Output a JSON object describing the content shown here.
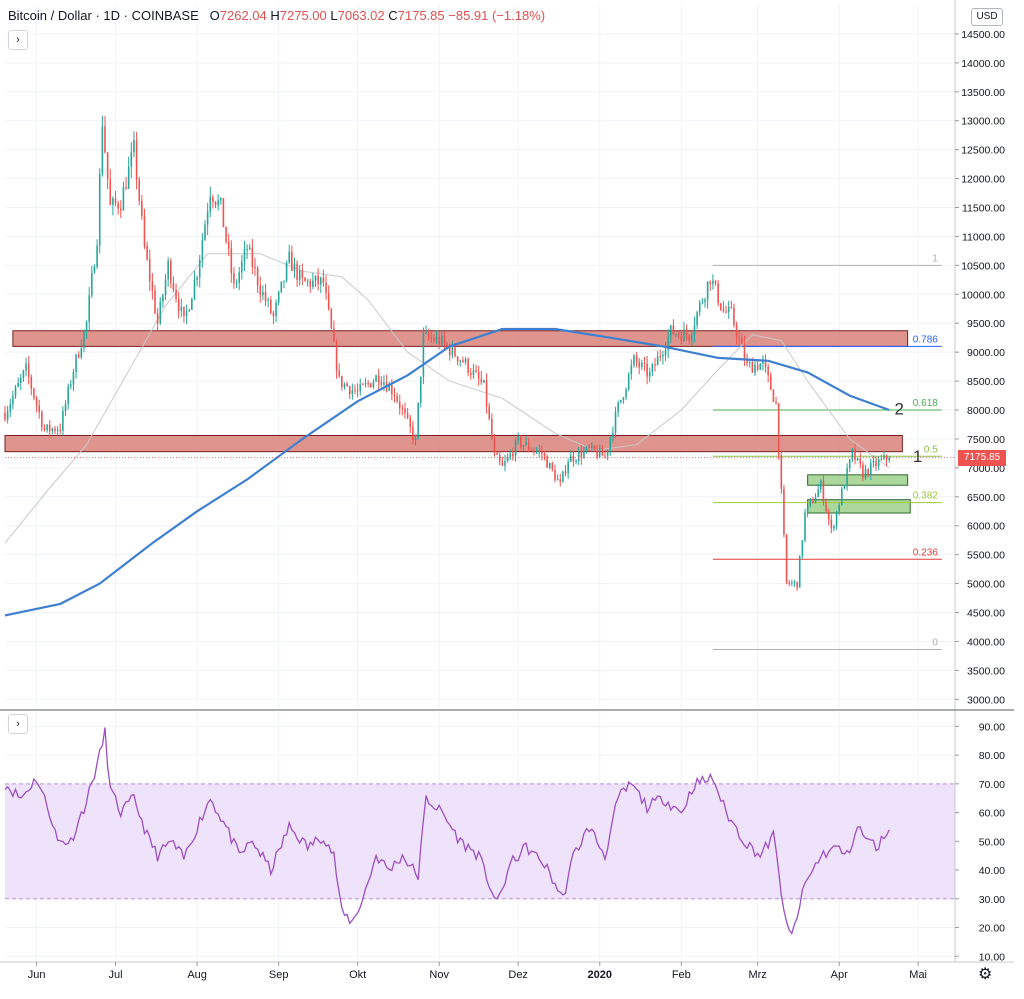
{
  "header": {
    "symbol": "Bitcoin / Dollar",
    "interval": "1D",
    "exchange": "COINBASE",
    "o_label": "O",
    "o_value": "7262.04",
    "h_label": "H",
    "h_value": "7275.00",
    "l_label": "L",
    "l_value": "7063.02",
    "c_label": "C",
    "c_value": "7175.85",
    "change": "−85.91 (−1.18%)",
    "collapse_glyph": "›"
  },
  "currency": "USD",
  "last_price_label": "7175.85",
  "rsi_collapse_glyph": "›",
  "settings_icon": "gear-icon",
  "colors": {
    "up": "#26a69a",
    "down": "#ef5350",
    "ma_long": "#3d7fd1",
    "ma_short": "#c9c9c9",
    "resistance_zone": "#d9837a",
    "support_zone": "#9ccf8b",
    "rsi_line": "#9c4fc2",
    "rsi_band": "#efe2fb"
  },
  "chart_data": [
    {
      "type": "candlestick",
      "ylim": [
        2850,
        15000
      ],
      "y_ticks": [
        3000,
        3500,
        4000,
        4500,
        5000,
        5500,
        6000,
        6500,
        7000,
        7500,
        8000,
        8500,
        9000,
        9500,
        10000,
        10500,
        11000,
        11500,
        12000,
        12500,
        13000,
        13500,
        14000,
        14500
      ],
      "y_tick_labels": [
        "3000.00",
        "3500.00",
        "4000.00",
        "4500.00",
        "5000.00",
        "5500.00",
        "6000.00",
        "6500.00",
        "7000.00",
        "7500.00",
        "8000.00",
        "8500.00",
        "9000.00",
        "9500.00",
        "10000.00",
        "10500.00",
        "11000.00",
        "11500.00",
        "12000.00",
        "12500.00",
        "13000.00",
        "13500.00",
        "14000.00",
        "14500.00"
      ],
      "x_domain": [
        "2019-05-20",
        "2020-05-15"
      ],
      "x_ticks": [
        {
          "date": "2019-06-01",
          "label": "Jun"
        },
        {
          "date": "2019-07-01",
          "label": "Jul"
        },
        {
          "date": "2019-08-01",
          "label": "Aug"
        },
        {
          "date": "2019-09-01",
          "label": "Sep"
        },
        {
          "date": "2019-10-01",
          "label": "Okt"
        },
        {
          "date": "2019-11-01",
          "label": "Nov"
        },
        {
          "date": "2019-12-01",
          "label": "Dez"
        },
        {
          "date": "2020-01-01",
          "label": "2020"
        },
        {
          "date": "2020-02-01",
          "label": "Feb"
        },
        {
          "date": "2020-03-01",
          "label": "Mrz"
        },
        {
          "date": "2020-04-01",
          "label": "Apr"
        },
        {
          "date": "2020-05-01",
          "label": "Mai"
        }
      ],
      "close_path": [
        [
          "2019-05-20",
          7950
        ],
        [
          "2019-05-28",
          8700
        ],
        [
          "2019-06-04",
          7650
        ],
        [
          "2019-06-10",
          7700
        ],
        [
          "2019-06-15",
          8700
        ],
        [
          "2019-06-20",
          9500
        ],
        [
          "2019-06-24",
          11000
        ],
        [
          "2019-06-26",
          13000
        ],
        [
          "2019-06-29",
          11500
        ],
        [
          "2019-07-03",
          11600
        ],
        [
          "2019-07-08",
          12500
        ],
        [
          "2019-07-12",
          10800
        ],
        [
          "2019-07-17",
          9500
        ],
        [
          "2019-07-21",
          10500
        ],
        [
          "2019-07-27",
          9500
        ],
        [
          "2019-08-01",
          10400
        ],
        [
          "2019-08-06",
          11800
        ],
        [
          "2019-08-10",
          11500
        ],
        [
          "2019-08-15",
          10100
        ],
        [
          "2019-08-20",
          10800
        ],
        [
          "2019-08-25",
          10100
        ],
        [
          "2019-08-30",
          9600
        ],
        [
          "2019-09-05",
          10600
        ],
        [
          "2019-09-10",
          10200
        ],
        [
          "2019-09-18",
          10200
        ],
        [
          "2019-09-24",
          8500
        ],
        [
          "2019-10-01",
          8300
        ],
        [
          "2019-10-09",
          8600
        ],
        [
          "2019-10-15",
          8300
        ],
        [
          "2019-10-23",
          7450
        ],
        [
          "2019-10-26",
          9250
        ],
        [
          "2019-11-01",
          9200
        ],
        [
          "2019-11-10",
          8850
        ],
        [
          "2019-11-18",
          8400
        ],
        [
          "2019-11-22",
          7200
        ],
        [
          "2019-11-25",
          7000
        ],
        [
          "2019-12-01",
          7450
        ],
        [
          "2019-12-10",
          7250
        ],
        [
          "2019-12-17",
          6700
        ],
        [
          "2019-12-20",
          7150
        ],
        [
          "2019-12-28",
          7300
        ],
        [
          "2020-01-03",
          7200
        ],
        [
          "2020-01-08",
          8050
        ],
        [
          "2020-01-14",
          8850
        ],
        [
          "2020-01-20",
          8600
        ],
        [
          "2020-01-28",
          9350
        ],
        [
          "2020-02-04",
          9300
        ],
        [
          "2020-02-12",
          10300
        ],
        [
          "2020-02-17",
          9700
        ],
        [
          "2020-02-20",
          9650
        ],
        [
          "2020-02-26",
          8750
        ],
        [
          "2020-03-03",
          8800
        ],
        [
          "2020-03-08",
          8100
        ],
        [
          "2020-03-12",
          5000
        ],
        [
          "2020-03-16",
          5000
        ],
        [
          "2020-03-19",
          6200
        ],
        [
          "2020-03-25",
          6700
        ],
        [
          "2020-03-29",
          5900
        ],
        [
          "2020-04-06",
          7250
        ],
        [
          "2020-04-10",
          6900
        ],
        [
          "2020-04-16",
          7100
        ],
        [
          "2020-04-20",
          7175.85
        ]
      ],
      "candle_start": "2019-05-20",
      "candle_end": "2020-04-20",
      "ma_long": {
        "name": "MA",
        "color": "#3d7fd1",
        "points": [
          [
            "2019-05-20",
            4450
          ],
          [
            "2019-06-10",
            4650
          ],
          [
            "2019-06-25",
            5000
          ],
          [
            "2019-07-15",
            5700
          ],
          [
            "2019-08-01",
            6250
          ],
          [
            "2019-08-20",
            6800
          ],
          [
            "2019-09-10",
            7500
          ],
          [
            "2019-10-01",
            8150
          ],
          [
            "2019-10-20",
            8600
          ],
          [
            "2019-11-05",
            9100
          ],
          [
            "2019-11-25",
            9400
          ],
          [
            "2019-12-15",
            9400
          ],
          [
            "2020-01-05",
            9250
          ],
          [
            "2020-01-25",
            9100
          ],
          [
            "2020-02-15",
            8900
          ],
          [
            "2020-03-05",
            8850
          ],
          [
            "2020-03-20",
            8650
          ],
          [
            "2020-04-05",
            8250
          ],
          [
            "2020-04-20",
            8000
          ]
        ]
      },
      "ma_short": {
        "name": "MA",
        "color": "#c9c9c9",
        "points": [
          [
            "2019-05-20",
            5700
          ],
          [
            "2019-06-05",
            6600
          ],
          [
            "2019-06-20",
            7400
          ],
          [
            "2019-07-05",
            8600
          ],
          [
            "2019-07-20",
            9800
          ],
          [
            "2019-08-05",
            10700
          ],
          [
            "2019-08-25",
            10700
          ],
          [
            "2019-09-10",
            10400
          ],
          [
            "2019-09-25",
            10300
          ],
          [
            "2019-10-05",
            9900
          ],
          [
            "2019-10-20",
            9000
          ],
          [
            "2019-11-05",
            8500
          ],
          [
            "2019-11-25",
            8200
          ],
          [
            "2019-12-15",
            7600
          ],
          [
            "2019-12-30",
            7300
          ],
          [
            "2020-01-15",
            7400
          ],
          [
            "2020-02-01",
            8000
          ],
          [
            "2020-02-15",
            8700
          ],
          [
            "2020-02-28",
            9300
          ],
          [
            "2020-03-10",
            9200
          ],
          [
            "2020-03-20",
            8500
          ],
          [
            "2020-04-05",
            7500
          ],
          [
            "2020-04-20",
            7000
          ]
        ]
      },
      "zones": [
        {
          "kind": "resistance",
          "from": "2019-05-23",
          "to": "2020-04-27",
          "low": 9100,
          "high": 9370
        },
        {
          "kind": "resistance",
          "from": "2019-05-20",
          "to": "2020-04-25",
          "low": 7280,
          "high": 7560
        },
        {
          "kind": "support",
          "from": "2020-03-20",
          "to": "2020-04-27",
          "low": 6700,
          "high": 6880
        },
        {
          "kind": "support",
          "from": "2020-03-20",
          "to": "2020-04-28",
          "low": 6220,
          "high": 6450
        }
      ],
      "fibonacci": {
        "from": "2020-02-13",
        "to": "2020-05-10",
        "levels": [
          {
            "ratio": "1",
            "price": 10500,
            "color": "#b0b0b0"
          },
          {
            "ratio": "0.786",
            "price": 9100,
            "color": "#2962ff"
          },
          {
            "ratio": "0.618",
            "price": 8000,
            "color": "#4caf50"
          },
          {
            "ratio": "0.5",
            "price": 7200,
            "color": "#8bc34a"
          },
          {
            "ratio": "0.382",
            "price": 6400,
            "color": "#9acd32"
          },
          {
            "ratio": "0.236",
            "price": 5420,
            "color": "#e53935"
          },
          {
            "ratio": "0",
            "price": 3860,
            "color": "#b0b0b0"
          }
        ]
      },
      "annotations": [
        {
          "text": "2",
          "date": "2020-04-22",
          "price": 7920
        },
        {
          "text": "1",
          "date": "2020-04-29",
          "price": 7100
        }
      ]
    },
    {
      "type": "line",
      "title": "",
      "ylim": [
        8,
        95
      ],
      "y_ticks": [
        10,
        20,
        30,
        40,
        50,
        60,
        70,
        80,
        90
      ],
      "y_tick_labels": [
        "10.00",
        "20.00",
        "30.00",
        "40.00",
        "50.00",
        "60.00",
        "70.00",
        "80.00",
        "90.00"
      ],
      "band": [
        30,
        70
      ],
      "series": [
        {
          "points": [
            [
              "2019-05-20",
              70
            ],
            [
              "2019-05-26",
              65
            ],
            [
              "2019-06-01",
              72
            ],
            [
              "2019-06-06",
              60
            ],
            [
              "2019-06-09",
              50
            ],
            [
              "2019-06-14",
              50
            ],
            [
              "2019-06-20",
              64
            ],
            [
              "2019-06-25",
              80
            ],
            [
              "2019-06-27",
              88
            ],
            [
              "2019-06-29",
              68
            ],
            [
              "2019-07-03",
              60
            ],
            [
              "2019-07-08",
              65
            ],
            [
              "2019-07-13",
              52
            ],
            [
              "2019-07-17",
              45
            ],
            [
              "2019-07-22",
              50
            ],
            [
              "2019-07-27",
              44
            ],
            [
              "2019-08-01",
              55
            ],
            [
              "2019-08-06",
              65
            ],
            [
              "2019-08-12",
              55
            ],
            [
              "2019-08-17",
              45
            ],
            [
              "2019-08-22",
              50
            ],
            [
              "2019-08-29",
              40
            ],
            [
              "2019-09-05",
              55
            ],
            [
              "2019-09-12",
              48
            ],
            [
              "2019-09-18",
              52
            ],
            [
              "2019-09-22",
              45
            ],
            [
              "2019-09-25",
              25
            ],
            [
              "2019-09-29",
              22
            ],
            [
              "2019-10-03",
              30
            ],
            [
              "2019-10-08",
              45
            ],
            [
              "2019-10-13",
              40
            ],
            [
              "2019-10-18",
              45
            ],
            [
              "2019-10-24",
              38
            ],
            [
              "2019-10-27",
              65
            ],
            [
              "2019-11-02",
              60
            ],
            [
              "2019-11-09",
              50
            ],
            [
              "2019-11-16",
              45
            ],
            [
              "2019-11-23",
              28
            ],
            [
              "2019-11-28",
              42
            ],
            [
              "2019-12-04",
              48
            ],
            [
              "2019-12-11",
              42
            ],
            [
              "2019-12-18",
              30
            ],
            [
              "2019-12-22",
              45
            ],
            [
              "2019-12-28",
              55
            ],
            [
              "2020-01-03",
              45
            ],
            [
              "2020-01-08",
              65
            ],
            [
              "2020-01-13",
              70
            ],
            [
              "2020-01-19",
              62
            ],
            [
              "2020-01-25",
              65
            ],
            [
              "2020-02-01",
              60
            ],
            [
              "2020-02-06",
              70
            ],
            [
              "2020-02-13",
              72
            ],
            [
              "2020-02-18",
              60
            ],
            [
              "2020-02-25",
              50
            ],
            [
              "2020-03-02",
              45
            ],
            [
              "2020-03-07",
              52
            ],
            [
              "2020-03-12",
              20
            ],
            [
              "2020-03-14",
              17
            ],
            [
              "2020-03-19",
              35
            ],
            [
              "2020-03-25",
              45
            ],
            [
              "2020-03-31",
              48
            ],
            [
              "2020-04-04",
              45
            ],
            [
              "2020-04-08",
              55
            ],
            [
              "2020-04-12",
              50
            ],
            [
              "2020-04-16",
              48
            ],
            [
              "2020-04-18",
              52
            ],
            [
              "2020-04-20",
              54
            ]
          ]
        }
      ]
    }
  ]
}
